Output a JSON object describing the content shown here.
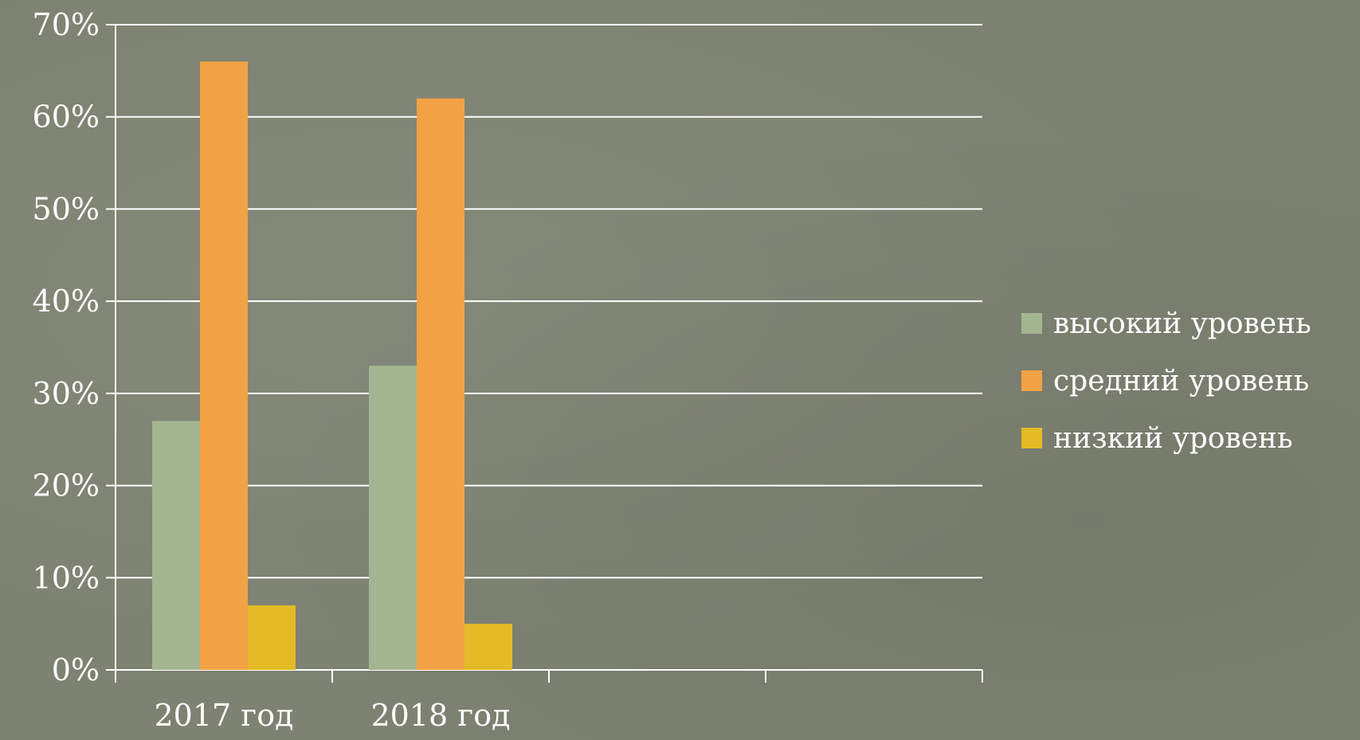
{
  "chart_data": {
    "type": "bar",
    "categories": [
      "2017 год",
      "2018 год",
      "",
      ""
    ],
    "series": [
      {
        "name": "высокий уровень",
        "values": [
          27,
          33,
          null,
          null
        ],
        "color": "#a4b592"
      },
      {
        "name": "средний уровень",
        "values": [
          66,
          62,
          null,
          null
        ],
        "color": "#f2a245"
      },
      {
        "name": "низкий уровень",
        "values": [
          7,
          5,
          null,
          null
        ],
        "color": "#e4bb27"
      }
    ],
    "y_ticks": [
      "0%",
      "10%",
      "20%",
      "30%",
      "40%",
      "50%",
      "60%",
      "70%"
    ],
    "ylim": [
      0,
      70
    ],
    "grid": true,
    "legend_position": "right",
    "title": "",
    "xlabel": "",
    "ylabel": ""
  }
}
